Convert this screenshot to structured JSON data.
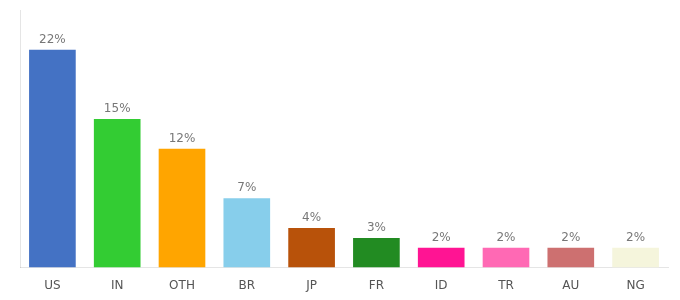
{
  "chart_data": {
    "type": "bar",
    "categories": [
      "US",
      "IN",
      "OTH",
      "BR",
      "JP",
      "FR",
      "ID",
      "TR",
      "AU",
      "NG"
    ],
    "values": [
      22,
      15,
      12,
      7,
      4,
      3,
      2,
      2,
      2,
      2
    ],
    "value_labels": [
      "22%",
      "15%",
      "12%",
      "7%",
      "4%",
      "3%",
      "2%",
      "2%",
      "2%",
      "2%"
    ],
    "colors": [
      "#4472C4",
      "#33CC33",
      "#FFA500",
      "#87CEEB",
      "#B8520A",
      "#228B22",
      "#FF1493",
      "#FF69B4",
      "#CD7070",
      "#F5F5DC"
    ],
    "ylim": [
      0,
      26
    ],
    "grid": false,
    "data_labels": true,
    "tick_labels": "x"
  }
}
